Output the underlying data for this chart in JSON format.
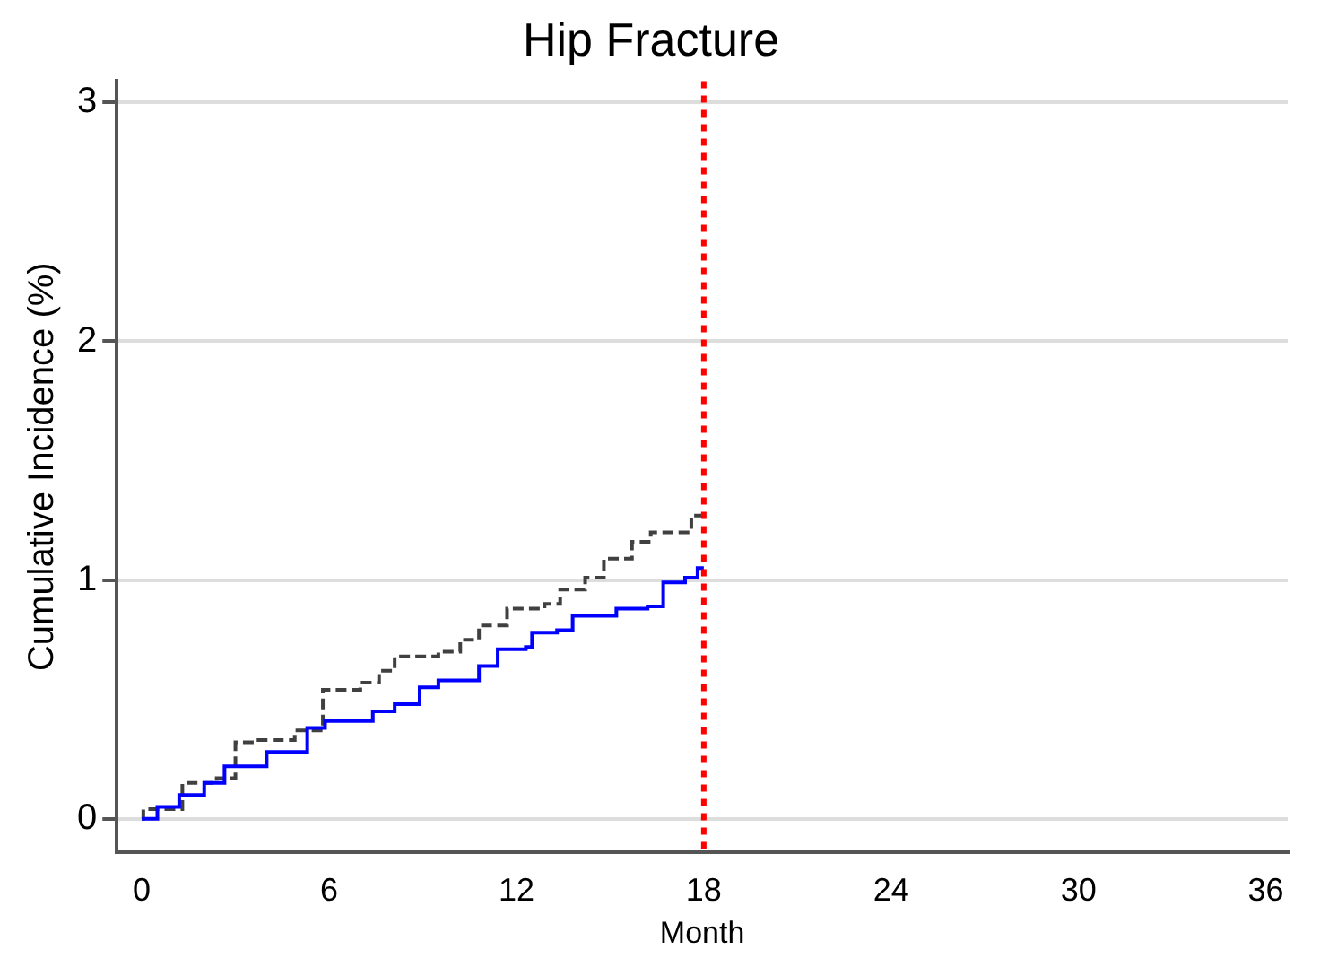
{
  "chart_data": {
    "type": "step",
    "title": "Hip Fracture",
    "xlabel": "Month",
    "ylabel": "Cumulative Incidence (%)",
    "xlim": [
      -0.8,
      36.7
    ],
    "xticks": [
      0,
      6,
      12,
      18,
      24,
      30,
      36
    ],
    "ylim": [
      -0.14,
      3.09
    ],
    "yticks": [
      0,
      1,
      2,
      3
    ],
    "grid": "y",
    "legend": false,
    "marker": "none",
    "series": [
      {
        "color": "#0000ff",
        "line_style": "solid",
        "x": [
          0,
          0.5,
          1.2,
          2,
          2.65,
          3.3,
          4,
          5.3,
          5.87,
          6.6,
          7.4,
          8.1,
          8.9,
          9.5,
          10,
          10.8,
          11.4,
          12.3,
          12.5,
          13.3,
          13.8,
          15,
          15.2,
          16.2,
          16.7,
          17.4,
          17.8,
          18
        ],
        "values": [
          0,
          0.05,
          0.1,
          0.15,
          0.22,
          0.22,
          0.28,
          0.38,
          0.41,
          0.41,
          0.45,
          0.48,
          0.55,
          0.58,
          0.58,
          0.64,
          0.71,
          0.72,
          0.78,
          0.79,
          0.85,
          0.85,
          0.88,
          0.89,
          0.99,
          1.01,
          1.05,
          1.05
        ]
      },
      {
        "color": "#404040",
        "line_style": "dashed",
        "x": [
          0,
          0.05,
          1.3,
          2.4,
          3,
          3.6,
          4.9,
          5.8,
          7,
          7.6,
          8.1,
          9.5,
          10.2,
          10.8,
          11.7,
          12.9,
          13.4,
          14.2,
          14.8,
          15.7,
          16.3,
          16.9,
          17.6,
          18
        ],
        "values": [
          0,
          0.04,
          0.15,
          0.17,
          0.32,
          0.33,
          0.37,
          0.54,
          0.57,
          0.62,
          0.68,
          0.7,
          0.75,
          0.81,
          0.88,
          0.9,
          0.96,
          1.01,
          1.09,
          1.16,
          1.2,
          1.2,
          1.27,
          1.28
        ]
      }
    ],
    "ref_lines": [
      {
        "axis": "x",
        "value": 18,
        "color": "#ff0000",
        "line_style": "dotted"
      }
    ]
  }
}
